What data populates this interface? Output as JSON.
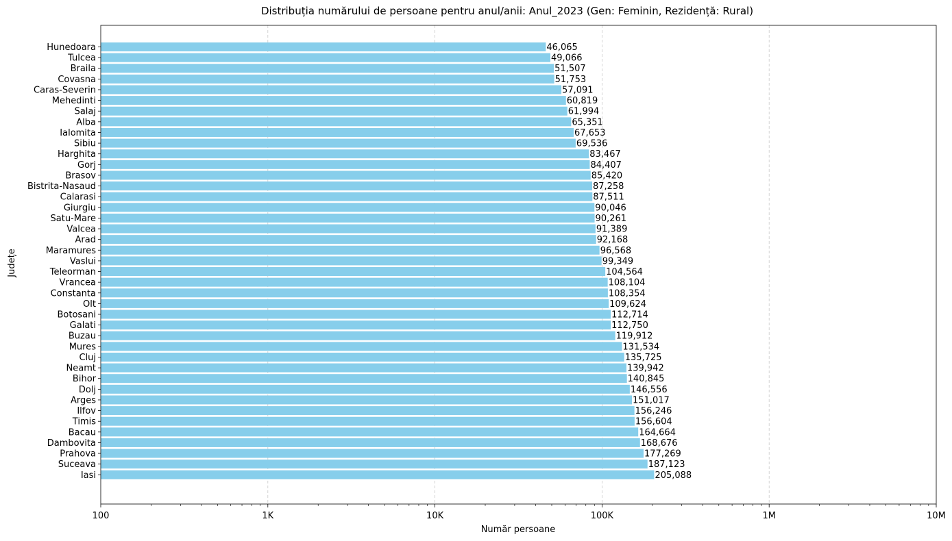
{
  "chart_data": {
    "type": "bar",
    "orientation": "horizontal",
    "title": "Distribuția numărului de persoane pentru anul/anii: Anul_2023 (Gen: Feminin, Rezidență: Rural)",
    "xlabel": "Număr persoane",
    "ylabel": "Județe",
    "xscale": "log",
    "xlim": [
      100,
      10000000
    ],
    "xticks": [
      100,
      1000,
      10000,
      100000,
      1000000,
      10000000
    ],
    "xtick_labels": [
      "100",
      "1K",
      "10K",
      "100K",
      "1M",
      "10M"
    ],
    "grid": "x-major-dashed",
    "bar_color": "#87ceeb",
    "categories": [
      "Hunedoara",
      "Tulcea",
      "Braila",
      "Covasna",
      "Caras-Severin",
      "Mehedinti",
      "Salaj",
      "Alba",
      "Ialomita",
      "Sibiu",
      "Harghita",
      "Gorj",
      "Brasov",
      "Bistrita-Nasaud",
      "Calarasi",
      "Giurgiu",
      "Satu-Mare",
      "Valcea",
      "Arad",
      "Maramures",
      "Vaslui",
      "Teleorman",
      "Vrancea",
      "Constanta",
      "Olt",
      "Botosani",
      "Galati",
      "Buzau",
      "Mures",
      "Cluj",
      "Neamt",
      "Bihor",
      "Dolj",
      "Arges",
      "Ilfov",
      "Timis",
      "Bacau",
      "Dambovita",
      "Prahova",
      "Suceava",
      "Iasi"
    ],
    "values": [
      46065,
      49066,
      51507,
      51753,
      57091,
      60819,
      61994,
      65351,
      67653,
      69536,
      83467,
      84407,
      85420,
      87258,
      87511,
      90046,
      90261,
      91389,
      92168,
      96568,
      99349,
      104564,
      108104,
      108354,
      109624,
      112714,
      112750,
      119912,
      131534,
      135725,
      139942,
      140845,
      146556,
      151017,
      156246,
      156604,
      164664,
      168676,
      177269,
      187123,
      205088
    ],
    "value_labels": [
      "46,065",
      "49,066",
      "51,507",
      "51,753",
      "57,091",
      "60,819",
      "61,994",
      "65,351",
      "67,653",
      "69,536",
      "83,467",
      "84,407",
      "85,420",
      "87,258",
      "87,511",
      "90,046",
      "90,261",
      "91,389",
      "92,168",
      "96,568",
      "99,349",
      "104,564",
      "108,104",
      "108,354",
      "109,624",
      "112,714",
      "112,750",
      "119,912",
      "131,534",
      "135,725",
      "139,942",
      "140,845",
      "146,556",
      "151,017",
      "156,246",
      "156,604",
      "164,664",
      "168,676",
      "177,269",
      "187,123",
      "205,088"
    ]
  }
}
